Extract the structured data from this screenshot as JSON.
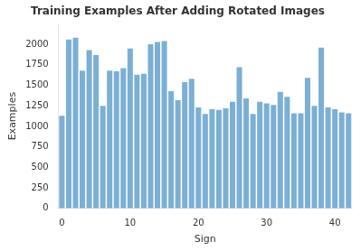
{
  "chart_data": {
    "type": "bar",
    "title": "Training Examples After Adding Rotated Images",
    "xlabel": "Sign",
    "ylabel": "Examples",
    "categories": [
      "0",
      null,
      null,
      null,
      null,
      null,
      null,
      null,
      null,
      null,
      "10",
      null,
      null,
      null,
      null,
      null,
      null,
      null,
      null,
      null,
      "20",
      null,
      null,
      null,
      null,
      null,
      null,
      null,
      null,
      null,
      "30",
      null,
      null,
      null,
      null,
      null,
      null,
      null,
      null,
      null,
      "40",
      null,
      null
    ],
    "values": [
      1130,
      2060,
      2080,
      1680,
      1930,
      1870,
      1250,
      1680,
      1670,
      1710,
      1950,
      1630,
      1640,
      2000,
      2030,
      2040,
      1430,
      1320,
      1540,
      1580,
      1230,
      1150,
      1210,
      1200,
      1220,
      1300,
      1720,
      1340,
      1150,
      1300,
      1280,
      1260,
      1420,
      1360,
      1160,
      1160,
      1590,
      1250,
      1960,
      1230,
      1210,
      1170,
      1160
    ],
    "color": "#7BAFD4",
    "ylim": [
      0,
      2250
    ],
    "yticks": [
      0,
      250,
      500,
      750,
      1000,
      1250,
      1500,
      1750,
      2000
    ],
    "grid": false
  }
}
